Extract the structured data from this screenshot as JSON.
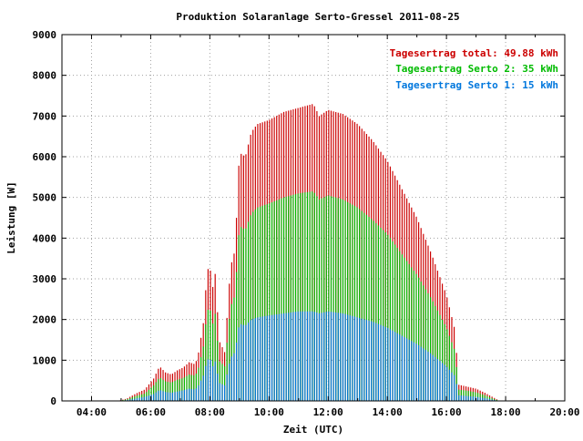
{
  "chart_data": {
    "type": "bar",
    "title": "Produktion Solaranlage Serto-Gressel 2011-08-25",
    "xlabel": "Zeit (UTC)",
    "ylabel": "Leistung [W]",
    "xlim": [
      3.0,
      20.0
    ],
    "ylim": [
      0,
      9000
    ],
    "x_ticks": [
      "04:00",
      "06:00",
      "08:00",
      "10:00",
      "12:00",
      "14:00",
      "16:00",
      "18:00",
      "20:00"
    ],
    "x_tick_values": [
      4,
      6,
      8,
      10,
      12,
      14,
      16,
      18,
      20
    ],
    "y_ticks": [
      "0",
      "1000",
      "2000",
      "3000",
      "4000",
      "5000",
      "6000",
      "7000",
      "8000",
      "9000"
    ],
    "y_tick_values": [
      0,
      1000,
      2000,
      3000,
      4000,
      5000,
      6000,
      7000,
      8000,
      9000
    ],
    "grid": true,
    "legend_position": "top-right",
    "legend": [
      {
        "label": "Tagesertrag total: 49.88 kWh",
        "color": "#cc0000"
      },
      {
        "label": "Tagesertrag Serto 2: 35 kWh",
        "color": "#00bb00"
      },
      {
        "label": "Tagesertrag Serto 1: 15 kWh",
        "color": "#0077dd"
      }
    ],
    "series": [
      {
        "name": "total",
        "color": "#cc0000",
        "profile": [
          [
            4.9,
            0
          ],
          [
            5.2,
            60
          ],
          [
            5.5,
            180
          ],
          [
            5.8,
            280
          ],
          [
            6.1,
            550
          ],
          [
            6.3,
            850
          ],
          [
            6.5,
            700
          ],
          [
            6.7,
            650
          ],
          [
            6.9,
            750
          ],
          [
            7.1,
            820
          ],
          [
            7.3,
            950
          ],
          [
            7.5,
            900
          ],
          [
            7.6,
            1100
          ],
          [
            7.8,
            2000
          ],
          [
            7.9,
            3200
          ],
          [
            8.0,
            3300
          ],
          [
            8.1,
            2800
          ],
          [
            8.2,
            3200
          ],
          [
            8.3,
            1500
          ],
          [
            8.5,
            1200
          ],
          [
            8.7,
            3300
          ],
          [
            8.85,
            3700
          ],
          [
            9.0,
            6100
          ],
          [
            9.2,
            6000
          ],
          [
            9.4,
            6600
          ],
          [
            9.6,
            6800
          ],
          [
            10.0,
            6900
          ],
          [
            10.5,
            7100
          ],
          [
            11.0,
            7200
          ],
          [
            11.5,
            7300
          ],
          [
            11.7,
            7000
          ],
          [
            12.0,
            7150
          ],
          [
            12.5,
            7050
          ],
          [
            13.0,
            6800
          ],
          [
            13.5,
            6400
          ],
          [
            14.0,
            5900
          ],
          [
            14.5,
            5200
          ],
          [
            15.0,
            4500
          ],
          [
            15.5,
            3600
          ],
          [
            16.0,
            2600
          ],
          [
            16.3,
            1700
          ],
          [
            16.4,
            400
          ],
          [
            16.7,
            350
          ],
          [
            17.0,
            300
          ],
          [
            17.3,
            200
          ],
          [
            17.6,
            80
          ],
          [
            17.8,
            0
          ]
        ]
      },
      {
        "name": "serto2",
        "color": "#00bb00",
        "profile": [
          [
            4.9,
            0
          ],
          [
            5.2,
            40
          ],
          [
            5.5,
            120
          ],
          [
            5.8,
            180
          ],
          [
            6.1,
            380
          ],
          [
            6.3,
            580
          ],
          [
            6.5,
            480
          ],
          [
            6.7,
            450
          ],
          [
            6.9,
            520
          ],
          [
            7.1,
            560
          ],
          [
            7.3,
            650
          ],
          [
            7.5,
            620
          ],
          [
            7.6,
            750
          ],
          [
            7.8,
            1400
          ],
          [
            7.9,
            2200
          ],
          [
            8.0,
            2300
          ],
          [
            8.1,
            1900
          ],
          [
            8.2,
            2200
          ],
          [
            8.3,
            1000
          ],
          [
            8.5,
            850
          ],
          [
            8.7,
            2300
          ],
          [
            8.85,
            2600
          ],
          [
            9.0,
            4300
          ],
          [
            9.2,
            4200
          ],
          [
            9.4,
            4600
          ],
          [
            9.6,
            4750
          ],
          [
            10.0,
            4850
          ],
          [
            10.5,
            5000
          ],
          [
            11.0,
            5100
          ],
          [
            11.5,
            5150
          ],
          [
            11.7,
            4950
          ],
          [
            12.0,
            5050
          ],
          [
            12.5,
            4950
          ],
          [
            13.0,
            4750
          ],
          [
            13.5,
            4450
          ],
          [
            14.0,
            4100
          ],
          [
            14.5,
            3600
          ],
          [
            15.0,
            3100
          ],
          [
            15.5,
            2500
          ],
          [
            16.0,
            1800
          ],
          [
            16.3,
            1200
          ],
          [
            16.4,
            280
          ],
          [
            16.7,
            250
          ],
          [
            17.0,
            210
          ],
          [
            17.3,
            140
          ],
          [
            17.6,
            50
          ],
          [
            17.8,
            0
          ]
        ]
      },
      {
        "name": "serto1",
        "color": "#0077dd",
        "profile": [
          [
            4.9,
            0
          ],
          [
            5.2,
            20
          ],
          [
            5.5,
            60
          ],
          [
            5.8,
            100
          ],
          [
            6.1,
            170
          ],
          [
            6.3,
            270
          ],
          [
            6.5,
            220
          ],
          [
            6.7,
            200
          ],
          [
            6.9,
            230
          ],
          [
            7.1,
            260
          ],
          [
            7.3,
            300
          ],
          [
            7.5,
            280
          ],
          [
            7.6,
            350
          ],
          [
            7.8,
            650
          ],
          [
            7.9,
            1000
          ],
          [
            8.0,
            1050
          ],
          [
            8.1,
            850
          ],
          [
            8.2,
            1000
          ],
          [
            8.3,
            450
          ],
          [
            8.5,
            380
          ],
          [
            8.7,
            1050
          ],
          [
            8.85,
            1200
          ],
          [
            9.0,
            1900
          ],
          [
            9.2,
            1850
          ],
          [
            9.4,
            2000
          ],
          [
            9.6,
            2050
          ],
          [
            10.0,
            2100
          ],
          [
            10.5,
            2150
          ],
          [
            11.0,
            2200
          ],
          [
            11.5,
            2200
          ],
          [
            11.7,
            2150
          ],
          [
            12.0,
            2200
          ],
          [
            12.5,
            2150
          ],
          [
            13.0,
            2050
          ],
          [
            13.5,
            1950
          ],
          [
            14.0,
            1800
          ],
          [
            14.5,
            1600
          ],
          [
            15.0,
            1400
          ],
          [
            15.5,
            1150
          ],
          [
            16.0,
            850
          ],
          [
            16.3,
            600
          ],
          [
            16.4,
            140
          ],
          [
            16.7,
            120
          ],
          [
            17.0,
            100
          ],
          [
            17.3,
            70
          ],
          [
            17.6,
            25
          ],
          [
            17.8,
            0
          ]
        ]
      }
    ],
    "bar_interval_hours": 0.08
  }
}
